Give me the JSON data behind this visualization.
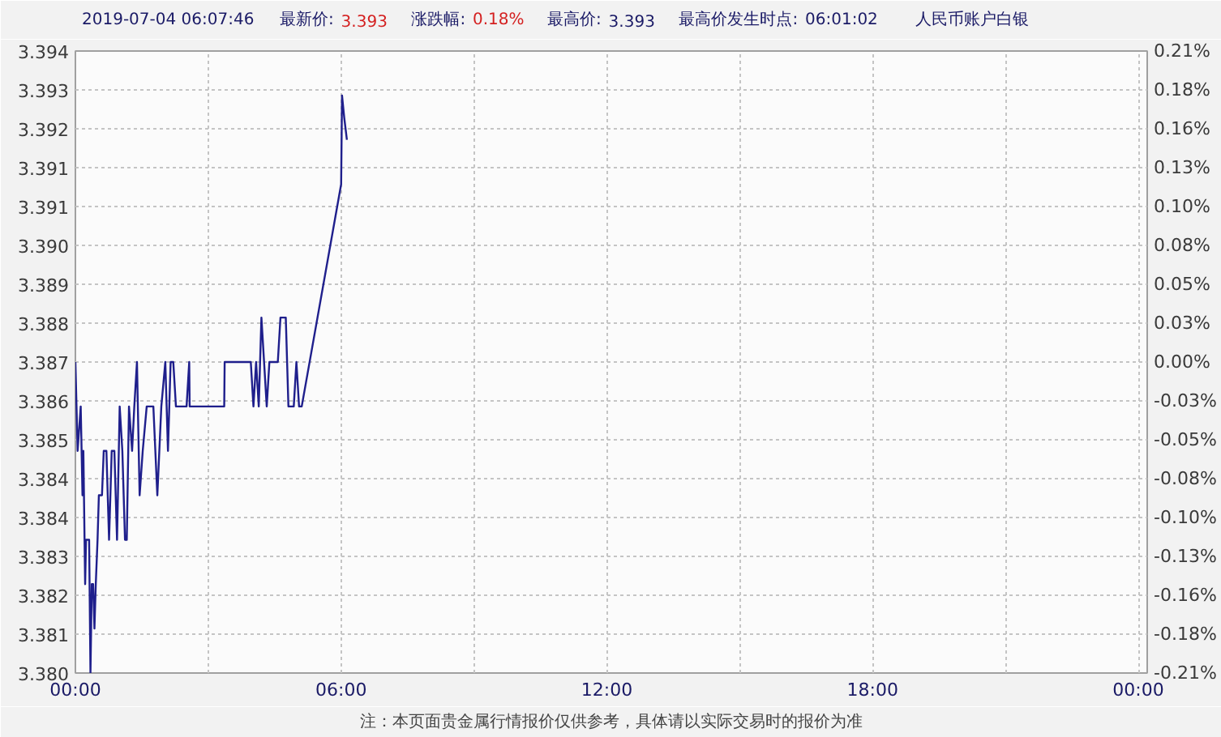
{
  "chart_data": {
    "type": "line",
    "title": "人民币账户白银",
    "annotations": [
      "2019-07-04 06:07:46",
      "最新价: 3.393",
      "涨跌幅: 0.18%",
      "最高价: 3.393",
      "最高价发生时点:  06:01:02",
      "注：本页面贵金属行情报价仅供参考，具体请以实际交易时的报价为准"
    ],
    "x": [
      0,
      0.05,
      0.12,
      0.16,
      0.18,
      0.22,
      0.24,
      0.31,
      0.34,
      0.37,
      0.4,
      0.43,
      0.46,
      0.5,
      0.53,
      0.6,
      0.64,
      0.7,
      0.76,
      0.82,
      0.88,
      0.94,
      1.0,
      1.06,
      1.12,
      1.16,
      1.21,
      1.28,
      1.33,
      1.39,
      1.45,
      1.52,
      1.61,
      1.76,
      1.85,
      1.94,
      2.03,
      2.09,
      2.15,
      2.21,
      2.27,
      2.51,
      2.57,
      2.58,
      3.36,
      3.37,
      3.96,
      4.02,
      4.08,
      4.14,
      4.2,
      4.32,
      4.38,
      4.57,
      4.63,
      4.75,
      4.81,
      4.93,
      4.99,
      5.05,
      5.11,
      6.0,
      6.02,
      6.07,
      6.13
    ],
    "values": [
      3.387,
      3.385,
      3.386,
      3.384,
      3.385,
      3.382,
      3.383,
      3.383,
      3.38,
      3.382,
      3.382,
      3.381,
      3.382,
      3.383,
      3.384,
      3.384,
      3.385,
      3.385,
      3.383,
      3.385,
      3.385,
      3.383,
      3.386,
      3.385,
      3.383,
      3.383,
      3.386,
      3.385,
      3.386,
      3.387,
      3.384,
      3.385,
      3.386,
      3.386,
      3.384,
      3.386,
      3.387,
      3.385,
      3.387,
      3.387,
      3.386,
      3.386,
      3.387,
      3.386,
      3.386,
      3.387,
      3.387,
      3.386,
      3.387,
      3.386,
      3.388,
      3.386,
      3.387,
      3.387,
      3.388,
      3.388,
      3.386,
      3.386,
      3.387,
      3.386,
      3.386,
      3.391,
      3.393,
      3.3925,
      3.392
    ],
    "color": "#1f1f8c",
    "xlim": [
      0,
      24.2
    ],
    "xticks": [
      {
        "value": 0,
        "label": "00:00"
      },
      {
        "value": 3,
        "label": null
      },
      {
        "value": 6,
        "label": "06:00"
      },
      {
        "value": 9,
        "label": null
      },
      {
        "value": 12,
        "label": "12:00"
      },
      {
        "value": 15,
        "label": null
      },
      {
        "value": 18,
        "label": "18:00"
      },
      {
        "value": 21,
        "label": null
      },
      {
        "value": 24,
        "label": "00:00"
      }
    ],
    "ylim": [
      3.38,
      3.394
    ],
    "yticks": [
      {
        "value": 3.38,
        "label": "3.380"
      },
      {
        "value": 3.380875,
        "label": "3.381"
      },
      {
        "value": 3.38175,
        "label": "3.382"
      },
      {
        "value": 3.382625,
        "label": "3.383"
      },
      {
        "value": 3.3835,
        "label": "3.384"
      },
      {
        "value": 3.384375,
        "label": "3.384"
      },
      {
        "value": 3.38525,
        "label": "3.385"
      },
      {
        "value": 3.386125,
        "label": "3.386"
      },
      {
        "value": 3.387,
        "label": "3.387"
      },
      {
        "value": 3.387875,
        "label": "3.388"
      },
      {
        "value": 3.38875,
        "label": "3.389"
      },
      {
        "value": 3.389625,
        "label": "3.390"
      },
      {
        "value": 3.3905,
        "label": "3.391"
      },
      {
        "value": 3.391375,
        "label": "3.391"
      },
      {
        "value": 3.39225,
        "label": "3.392"
      },
      {
        "value": 3.393125,
        "label": "3.393"
      },
      {
        "value": 3.394,
        "label": "3.394"
      }
    ],
    "y2lim": [
      -0.2067,
      0.2067
    ],
    "y2ticks": [
      {
        "value": -0.2067,
        "label": "-0.21%"
      },
      {
        "value": -0.1809,
        "label": "-0.18%"
      },
      {
        "value": -0.155,
        "label": "-0.16%"
      },
      {
        "value": -0.1292,
        "label": "-0.13%"
      },
      {
        "value": -0.1034,
        "label": "-0.10%"
      },
      {
        "value": -0.0775,
        "label": "-0.08%"
      },
      {
        "value": -0.0517,
        "label": "-0.05%"
      },
      {
        "value": -0.0258,
        "label": "-0.03%"
      },
      {
        "value": 0,
        "label": "0.00%"
      },
      {
        "value": 0.0258,
        "label": "0.03%"
      },
      {
        "value": 0.0517,
        "label": "0.05%"
      },
      {
        "value": 0.0775,
        "label": "0.08%"
      },
      {
        "value": 0.1034,
        "label": "0.10%"
      },
      {
        "value": 0.1292,
        "label": "0.13%"
      },
      {
        "value": 0.155,
        "label": "0.16%"
      },
      {
        "value": 0.1809,
        "label": "0.18%"
      },
      {
        "value": 0.2067,
        "label": "0.21%"
      }
    ],
    "grid": true
  }
}
